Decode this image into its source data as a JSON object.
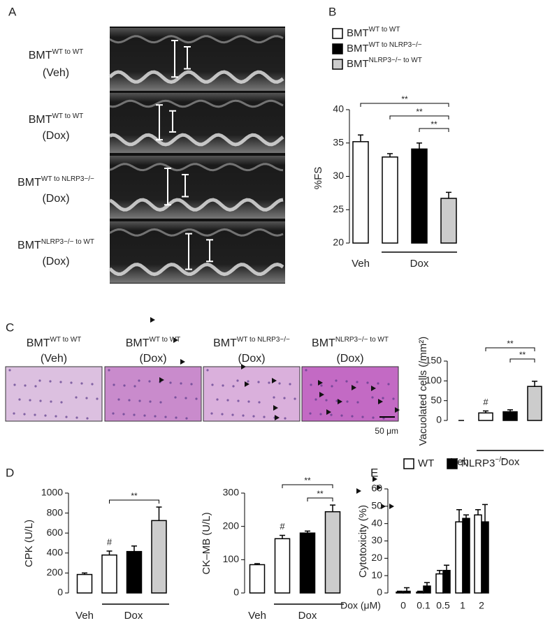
{
  "panels": {
    "letters": [
      "A",
      "B",
      "C",
      "D",
      "E"
    ],
    "echo_labels": [
      {
        "main": "BMT",
        "sup": "WT to WT",
        "condition": "(Veh)"
      },
      {
        "main": "BMT",
        "sup": "WT to WT",
        "condition": "(Dox)"
      },
      {
        "main": "BMT",
        "sup": "WT to NLRP3−/−",
        "condition": "(Dox)"
      },
      {
        "main": "BMT",
        "sup": "NLRP3−/− to  WT",
        "condition": "(Dox)"
      }
    ],
    "histology_labels": [
      {
        "main": "BMT",
        "sup": "WT to WT",
        "condition": "(Veh)"
      },
      {
        "main": "BMT",
        "sup": "WT to WT",
        "condition": "(Dox)"
      },
      {
        "main": "BMT",
        "sup": "WT to NLRP3−/−",
        "condition": "(Dox)"
      },
      {
        "main": "BMT",
        "sup": "NLRP3−/− to  WT",
        "condition": "(Dox)"
      }
    ],
    "scale_bar": "50 μm"
  },
  "chart_data": [
    {
      "type": "bar",
      "ylabel": "%FS",
      "categories": [
        "Veh",
        "Dox"
      ],
      "series": [
        {
          "name": "BMT",
          "sup": "WT to WT",
          "color": "#ffffff",
          "values": [
            35.2,
            32.9
          ],
          "errors": [
            1.0,
            0.5
          ]
        },
        {
          "name": "BMT",
          "sup": "WT to NLRP3−/−",
          "color": "#000000",
          "values": [
            null,
            34.1
          ],
          "errors": [
            null,
            0.9
          ]
        },
        {
          "name": "BMT",
          "sup": "NLRP3−/− to WT",
          "color": "#cccccc",
          "values": [
            null,
            26.7
          ],
          "errors": [
            null,
            0.9
          ]
        }
      ],
      "ylim": [
        20,
        40
      ],
      "yticks": [
        20,
        25,
        30,
        35,
        40
      ],
      "annotations": [
        "**",
        "**",
        "**"
      ]
    },
    {
      "type": "bar",
      "ylabel": "Vacuolated cells (/mm²)",
      "categories": [
        "Veh",
        "Dox"
      ],
      "series": [
        {
          "color": "#ffffff",
          "values": [
            0,
            19
          ],
          "errors": [
            0,
            5
          ]
        },
        {
          "color": "#000000",
          "values": [
            null,
            22
          ],
          "errors": [
            null,
            5
          ]
        },
        {
          "color": "#cccccc",
          "values": [
            null,
            86
          ],
          "errors": [
            null,
            13
          ]
        }
      ],
      "ylim": [
        0,
        150
      ],
      "yticks": [
        0,
        50,
        100,
        150
      ],
      "annotations": [
        "#",
        "**",
        "**"
      ]
    },
    {
      "type": "bar",
      "ylabel": "CPK (U/L)",
      "categories": [
        "Veh",
        "Dox"
      ],
      "series": [
        {
          "color": "#ffffff",
          "values": [
            185,
            380
          ],
          "errors": [
            15,
            40
          ]
        },
        {
          "color": "#000000",
          "values": [
            null,
            415
          ],
          "errors": [
            null,
            55
          ]
        },
        {
          "color": "#cccccc",
          "values": [
            null,
            725
          ],
          "errors": [
            null,
            135
          ]
        }
      ],
      "ylim": [
        0,
        1000
      ],
      "yticks": [
        0,
        200,
        400,
        600,
        800,
        1000
      ],
      "annotations": [
        "#",
        "**"
      ]
    },
    {
      "type": "bar",
      "ylabel": "CK–MB (U/L)",
      "categories": [
        "Veh",
        "Dox"
      ],
      "series": [
        {
          "color": "#ffffff",
          "values": [
            85,
            163
          ],
          "errors": [
            3,
            10
          ]
        },
        {
          "color": "#000000",
          "values": [
            null,
            180
          ],
          "errors": [
            null,
            6
          ]
        },
        {
          "color": "#cccccc",
          "values": [
            null,
            244
          ],
          "errors": [
            null,
            20
          ]
        }
      ],
      "ylim": [
        0,
        300
      ],
      "yticks": [
        0,
        100,
        200,
        300
      ],
      "annotations": [
        "#",
        "**",
        "**"
      ]
    },
    {
      "type": "bar",
      "ylabel": "Cytotoxicity (%)",
      "xlabel": "Dox (μM)",
      "categories": [
        "0",
        "0.1",
        "0.5",
        "1",
        "2"
      ],
      "series": [
        {
          "name": "WT",
          "color": "#ffffff",
          "values": [
            0.5,
            0.5,
            11,
            41,
            45
          ],
          "errors": [
            0.5,
            0.5,
            2,
            7,
            3
          ]
        },
        {
          "name": "NLRP3",
          "sup": "−/−",
          "color": "#000000",
          "values": [
            1,
            4,
            13,
            43,
            41
          ],
          "errors": [
            2,
            2,
            3,
            2,
            10
          ]
        }
      ],
      "ylim": [
        0,
        60
      ],
      "yticks": [
        0,
        10,
        20,
        30,
        40,
        50,
        60
      ]
    }
  ]
}
